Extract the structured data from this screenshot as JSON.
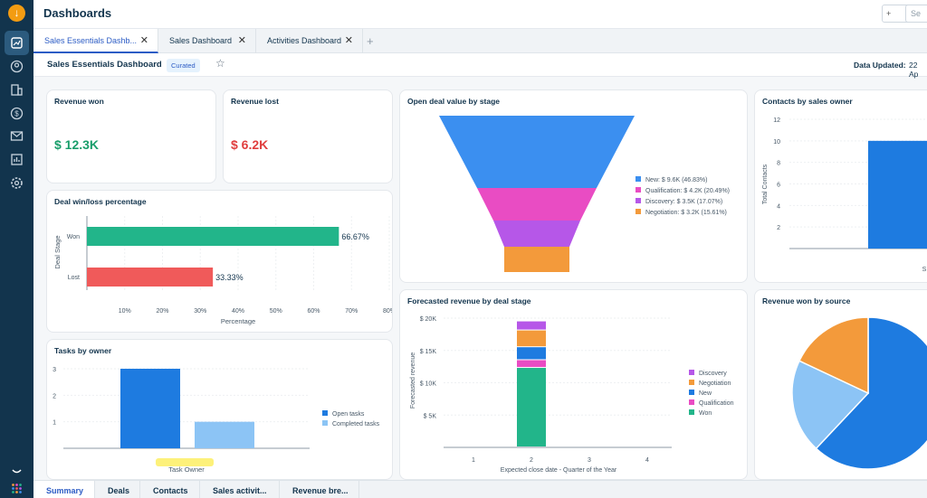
{
  "header": {
    "title": "Dashboards",
    "search_placeholder": "Se",
    "mini_btn": "+"
  },
  "tabs": [
    {
      "label": "Sales Essentials Dashb...",
      "active": true
    },
    {
      "label": "Sales Dashboard",
      "active": false
    },
    {
      "label": "Activities Dashboard",
      "active": false
    }
  ],
  "subheader": {
    "name": "Sales Essentials Dashboard",
    "badge": "Curated",
    "updated_label": "Data Updated:",
    "updated_value": "22 Ap"
  },
  "cards": {
    "revenue_won": {
      "title": "Revenue won",
      "value": "$ 12.3K"
    },
    "revenue_lost": {
      "title": "Revenue lost",
      "value": "$ 6.2K"
    },
    "winloss": {
      "title": "Deal win/loss percentage"
    },
    "tasks": {
      "title": "Tasks by owner"
    },
    "funnel": {
      "title": "Open deal value by stage"
    },
    "forecast": {
      "title": "Forecasted revenue by deal stage"
    },
    "contacts": {
      "title": "Contacts by sales owner"
    },
    "source": {
      "title": "Revenue won by source"
    }
  },
  "bottom_tabs": [
    "Summary",
    "Deals",
    "Contacts",
    "Sales activit...",
    "Revenue bre..."
  ],
  "colors": {
    "green": "#1a9e6b",
    "red": "#e03e3e",
    "blue": "#1e7be0",
    "lightblue": "#8cc4f5",
    "pink": "#e94cc3",
    "purple": "#b657e8",
    "orange": "#f39a3b",
    "teal": "#22b58a"
  },
  "chart_data": [
    {
      "id": "winloss",
      "type": "bar",
      "orientation": "horizontal",
      "categories": [
        "Won",
        "Lost"
      ],
      "values": [
        66.67,
        33.33
      ],
      "data_labels": [
        "66.67%",
        "33.33%"
      ],
      "xlabel": "Percentage",
      "ylabel": "Deal Stage",
      "xticks": [
        "10%",
        "20%",
        "30%",
        "40%",
        "50%",
        "60%",
        "70%",
        "80%"
      ],
      "xlim": [
        0,
        80
      ],
      "colors": [
        "#22b58a",
        "#f05a5a"
      ]
    },
    {
      "id": "tasks",
      "type": "bar",
      "categories": [
        ""
      ],
      "xlabel": "Task Owner",
      "series": [
        {
          "name": "Open tasks",
          "values": [
            3
          ]
        },
        {
          "name": "Completed tasks",
          "values": [
            1
          ]
        }
      ],
      "yticks": [
        "1",
        "2",
        "3"
      ],
      "ylim": [
        0,
        3
      ],
      "legend": "right",
      "colors": [
        "#1e7be0",
        "#8cc4f5"
      ]
    },
    {
      "id": "funnel",
      "type": "funnel",
      "stages": [
        {
          "label": "New: $ 9.6K (46.83%)",
          "value": 9.6,
          "color": "#3b8ff0"
        },
        {
          "label": "Qualification: $ 4.2K (20.49%)",
          "value": 4.2,
          "color": "#e94cc3"
        },
        {
          "label": "Discovery: $ 3.5K (17.07%)",
          "value": 3.5,
          "color": "#b657e8"
        },
        {
          "label": "Negotiation: $ 3.2K (15.61%)",
          "value": 3.2,
          "color": "#f39a3b"
        }
      ],
      "legend": "right"
    },
    {
      "id": "forecast",
      "type": "bar",
      "stacked": true,
      "categories": [
        "1",
        "2",
        "3",
        "4"
      ],
      "xlabel": "Expected close date - Quarter of the Year",
      "ylabel": "Forecasted revenue",
      "yticks": [
        "$ 5K",
        "$ 10K",
        "$ 15K",
        "$ 20K"
      ],
      "ylim": [
        0,
        20
      ],
      "series": [
        {
          "name": "Won",
          "values": [
            0,
            12.3,
            0,
            0
          ],
          "color": "#22b58a"
        },
        {
          "name": "Qualification",
          "values": [
            0,
            1.2,
            0,
            0
          ],
          "color": "#e94cc3"
        },
        {
          "name": "New",
          "values": [
            0,
            2.0,
            0,
            0
          ],
          "color": "#1e7be0"
        },
        {
          "name": "Negotiation",
          "values": [
            0,
            2.6,
            0,
            0
          ],
          "color": "#f39a3b"
        },
        {
          "name": "Discovery",
          "values": [
            0,
            1.4,
            0,
            0
          ],
          "color": "#b657e8"
        }
      ],
      "legend_order": [
        "Discovery",
        "Negotiation",
        "New",
        "Qualification",
        "Won"
      ],
      "legend": "right"
    },
    {
      "id": "contacts",
      "type": "bar",
      "categories": [
        "S"
      ],
      "values": [
        10
      ],
      "ylabel": "Total Contacts",
      "yticks": [
        "2",
        "4",
        "6",
        "8",
        "10",
        "12"
      ],
      "ylim": [
        0,
        12
      ],
      "colors": [
        "#1e7be0"
      ]
    },
    {
      "id": "source",
      "type": "pie",
      "slices": [
        {
          "value": 62,
          "color": "#1e7be0"
        },
        {
          "value": 20,
          "color": "#8cc4f5"
        },
        {
          "value": 18,
          "color": "#f39a3b"
        }
      ]
    }
  ]
}
